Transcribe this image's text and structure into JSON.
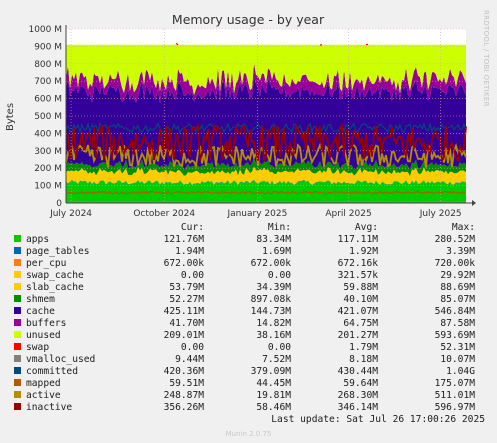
{
  "chart_data": {
    "type": "area",
    "title": "Memory usage - by year",
    "ylabel": "Bytes",
    "ylim": [
      0,
      1000
    ],
    "y_ticks": [
      0,
      100,
      200,
      300,
      400,
      500,
      600,
      700,
      800,
      900,
      1000
    ],
    "y_tick_labels": [
      "0",
      "100 M",
      "200 M",
      "300 M",
      "400 M",
      "500 M",
      "600 M",
      "700 M",
      "800 M",
      "900 M",
      "1000 M"
    ],
    "x_range": [
      "2024-06-26",
      "2025-07-26"
    ],
    "x_ticks": [
      "2024-07-01",
      "2024-10-01",
      "2025-01-01",
      "2025-04-01",
      "2025-07-01"
    ],
    "x_tick_labels": [
      "July 2024",
      "October 2024",
      "January 2025",
      "April 2025",
      "July 2025"
    ],
    "grid": true,
    "stack_order": [
      "apps",
      "page_tables",
      "per_cpu",
      "swap_cache",
      "slab_cache",
      "shmem",
      "cache",
      "buffers",
      "unused"
    ],
    "lines": [
      "swap",
      "vmalloc_used",
      "committed",
      "mapped",
      "active",
      "inactive"
    ],
    "columns": [
      "Cur:",
      "Min:",
      "Avg:",
      "Max:"
    ],
    "series": [
      {
        "name": "apps",
        "color": "#00cc00",
        "cur": "121.76M",
        "min": "83.34M",
        "avg": "117.11M",
        "max": "280.52M"
      },
      {
        "name": "page_tables",
        "color": "#0066b3",
        "cur": "1.94M",
        "min": "1.69M",
        "avg": "1.92M",
        "max": "3.39M"
      },
      {
        "name": "per_cpu",
        "color": "#ff8000",
        "cur": "672.00k",
        "min": "672.00k",
        "avg": "672.16k",
        "max": "720.00k"
      },
      {
        "name": "swap_cache",
        "color": "#ffcc00",
        "cur": "0.00",
        "min": "0.00",
        "avg": "321.57k",
        "max": "29.92M"
      },
      {
        "name": "slab_cache",
        "color": "#ffcc00",
        "cur": "53.79M",
        "min": "34.39M",
        "avg": "59.88M",
        "max": "88.69M"
      },
      {
        "name": "shmem",
        "color": "#008f00",
        "cur": "52.27M",
        "min": "897.08k",
        "avg": "40.10M",
        "max": "85.07M"
      },
      {
        "name": "cache",
        "color": "#330099",
        "cur": "425.11M",
        "min": "144.73M",
        "avg": "421.07M",
        "max": "546.84M"
      },
      {
        "name": "buffers",
        "color": "#990099",
        "cur": "41.70M",
        "min": "14.82M",
        "avg": "64.75M",
        "max": "87.58M"
      },
      {
        "name": "unused",
        "color": "#ccff00",
        "cur": "209.01M",
        "min": "38.16M",
        "avg": "201.27M",
        "max": "593.69M"
      },
      {
        "name": "swap",
        "color": "#ff0000",
        "cur": "0.00",
        "min": "0.00",
        "avg": "1.79M",
        "max": "52.31M"
      },
      {
        "name": "vmalloc_used",
        "color": "#808080",
        "cur": "9.44M",
        "min": "7.52M",
        "avg": "8.18M",
        "max": "10.07M"
      },
      {
        "name": "committed",
        "color": "#00487d",
        "cur": "420.36M",
        "min": "379.09M",
        "avg": "430.44M",
        "max": "1.04G"
      },
      {
        "name": "mapped",
        "color": "#b35a00",
        "cur": "59.51M",
        "min": "44.45M",
        "avg": "59.64M",
        "max": "175.07M"
      },
      {
        "name": "active",
        "color": "#b38f00",
        "cur": "248.87M",
        "min": "19.81M",
        "avg": "268.30M",
        "max": "511.01M"
      },
      {
        "name": "inactive",
        "color": "#990000",
        "cur": "356.26M",
        "min": "58.46M",
        "avg": "346.14M",
        "max": "596.97M"
      }
    ]
  },
  "last_update": "Last update: Sat Jul 26 17:00:26 2025",
  "footer": "Munin 2.0.75",
  "side_label": "RRDTOOL / TOBI OETIKER"
}
